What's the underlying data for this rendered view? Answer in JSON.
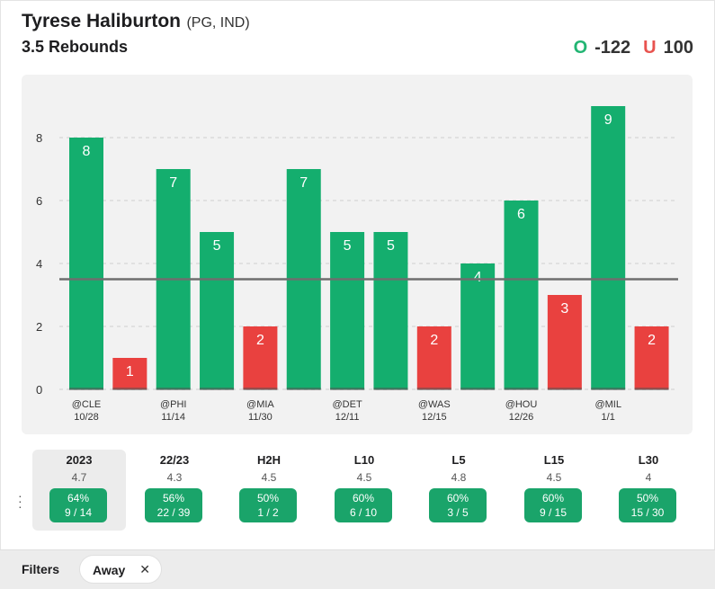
{
  "header": {
    "player_name": "Tyrese Haliburton",
    "player_meta": "(PG, IND)",
    "prop": "3.5 Rebounds",
    "over_letter": "O",
    "over_odds": "-122",
    "under_letter": "U",
    "under_odds": "100"
  },
  "colors": {
    "over": "#14ae6e",
    "under": "#e9413f",
    "panel": "#f2f2f2",
    "line": "#6e6e6e"
  },
  "chart_data": {
    "type": "bar",
    "title": "",
    "xlabel": "",
    "ylabel": "",
    "ylim": [
      0,
      9
    ],
    "yticks": [
      0,
      2,
      4,
      6,
      8
    ],
    "threshold": 3.5,
    "grid": true,
    "values": [
      8,
      1,
      7,
      5,
      2,
      7,
      5,
      5,
      2,
      4,
      6,
      3,
      9,
      2
    ],
    "categories": [
      "@CLE",
      "",
      "@PHI",
      "",
      "@MIA",
      "",
      "@DET",
      "",
      "@WAS",
      "",
      "@HOU",
      "",
      "@MIL",
      ""
    ],
    "dates": [
      "10/28",
      "",
      "11/14",
      "",
      "11/30",
      "",
      "12/11",
      "",
      "12/15",
      "",
      "12/26",
      "",
      "1/1",
      ""
    ]
  },
  "stats": [
    {
      "label": "2023",
      "avg": "4.7",
      "pct": "64%",
      "record": "9 / 14",
      "active": true
    },
    {
      "label": "22/23",
      "avg": "4.3",
      "pct": "56%",
      "record": "22 / 39",
      "active": false
    },
    {
      "label": "H2H",
      "avg": "4.5",
      "pct": "50%",
      "record": "1 / 2",
      "active": false
    },
    {
      "label": "L10",
      "avg": "4.5",
      "pct": "60%",
      "record": "6 / 10",
      "active": false
    },
    {
      "label": "L5",
      "avg": "4.8",
      "pct": "60%",
      "record": "3 / 5",
      "active": false
    },
    {
      "label": "L15",
      "avg": "4.5",
      "pct": "60%",
      "record": "9 / 15",
      "active": false
    },
    {
      "label": "L30",
      "avg": "4",
      "pct": "50%",
      "record": "15 / 30",
      "active": false
    }
  ],
  "filters": {
    "label": "Filters",
    "chips": [
      {
        "label": "Away"
      }
    ],
    "more_icon": "vertical-dots-icon"
  }
}
